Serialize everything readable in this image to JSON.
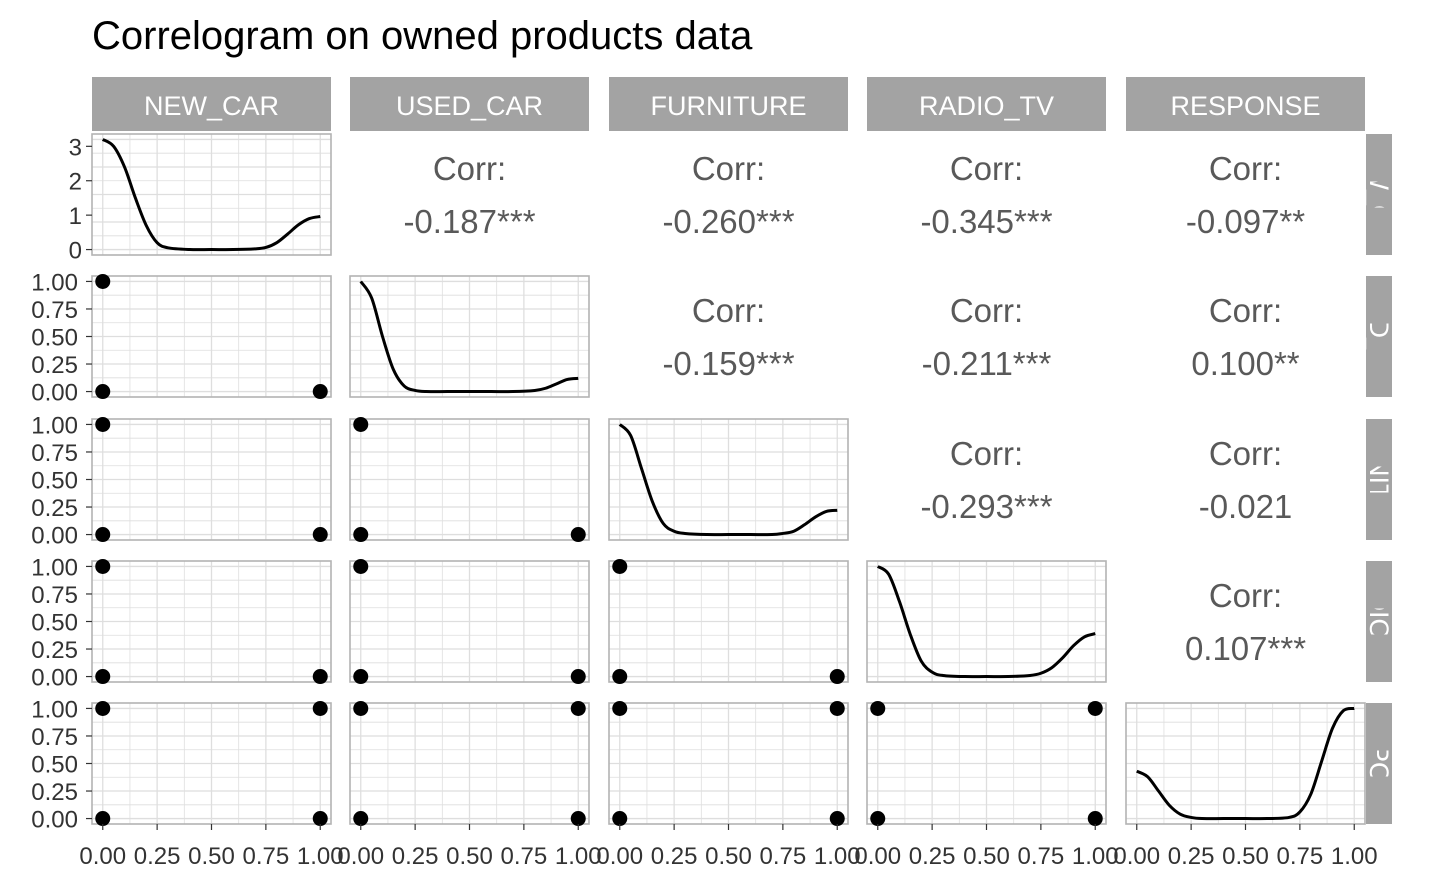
{
  "title": "Correlogram on owned products data",
  "variables": [
    "NEW_CAR",
    "USED_CAR",
    "FURNITURE",
    "RADIO_TV",
    "RESPONSE"
  ],
  "row_labels": [
    "NEW_CAR",
    "USED_CAR",
    "FURNITURE",
    "RADIO_TV",
    "RESPONSE"
  ],
  "corr_label": "Corr:",
  "colors": {
    "strip": "#a3a3a3",
    "grid": "#dedede",
    "border": "#b3b3b3",
    "line": "#000000",
    "text": "#595959"
  },
  "chart_data": {
    "type": "scatter",
    "title": "Correlogram on owned products data",
    "variables": [
      "NEW_CAR",
      "USED_CAR",
      "FURNITURE",
      "RADIO_TV",
      "RESPONSE"
    ],
    "x_ticks": [
      "0.00",
      "0.25",
      "0.50",
      "0.75",
      "1.00"
    ],
    "xlim": [
      0,
      1
    ],
    "y_ticks_density_row1": [
      "0",
      "1",
      "2",
      "3"
    ],
    "y_ticks_scatter": [
      "0.00",
      "0.25",
      "0.50",
      "0.75",
      "1.00"
    ],
    "grid": true,
    "correlations": [
      {
        "row": "NEW_CAR",
        "col": "USED_CAR",
        "value": "-0.187***"
      },
      {
        "row": "NEW_CAR",
        "col": "FURNITURE",
        "value": "-0.260***"
      },
      {
        "row": "NEW_CAR",
        "col": "RADIO_TV",
        "value": "-0.345***"
      },
      {
        "row": "NEW_CAR",
        "col": "RESPONSE",
        "value": "-0.097**"
      },
      {
        "row": "USED_CAR",
        "col": "FURNITURE",
        "value": "-0.159***"
      },
      {
        "row": "USED_CAR",
        "col": "RADIO_TV",
        "value": "-0.211***"
      },
      {
        "row": "USED_CAR",
        "col": "RESPONSE",
        "value": "0.100**"
      },
      {
        "row": "FURNITURE",
        "col": "RADIO_TV",
        "value": "-0.293***"
      },
      {
        "row": "FURNITURE",
        "col": "RESPONSE",
        "value": "-0.021"
      },
      {
        "row": "RADIO_TV",
        "col": "RESPONSE",
        "value": "0.107***"
      }
    ],
    "densities": [
      {
        "variable": "NEW_CAR",
        "x": [
          0,
          0.05,
          0.1,
          0.15,
          0.2,
          0.25,
          0.3,
          0.4,
          0.5,
          0.6,
          0.7,
          0.75,
          0.8,
          0.85,
          0.9,
          0.95,
          1.0
        ],
        "y": [
          3.2,
          3.0,
          2.4,
          1.5,
          0.7,
          0.2,
          0.05,
          0,
          0,
          0,
          0.02,
          0.06,
          0.2,
          0.45,
          0.72,
          0.9,
          0.96
        ]
      },
      {
        "variable": "USED_CAR",
        "x": [
          0,
          0.05,
          0.1,
          0.15,
          0.2,
          0.25,
          0.3,
          0.4,
          0.5,
          0.6,
          0.7,
          0.8,
          0.85,
          0.9,
          0.95,
          1.0
        ],
        "y": [
          1.0,
          0.85,
          0.5,
          0.2,
          0.05,
          0.01,
          0,
          0,
          0,
          0,
          0,
          0.01,
          0.03,
          0.07,
          0.11,
          0.12
        ]
      },
      {
        "variable": "FURNITURE",
        "x": [
          0,
          0.05,
          0.1,
          0.15,
          0.2,
          0.25,
          0.3,
          0.4,
          0.5,
          0.6,
          0.7,
          0.75,
          0.8,
          0.85,
          0.9,
          0.95,
          1.0
        ],
        "y": [
          1.0,
          0.9,
          0.6,
          0.3,
          0.1,
          0.03,
          0.01,
          0,
          0,
          0,
          0,
          0.01,
          0.03,
          0.09,
          0.16,
          0.21,
          0.22
        ]
      },
      {
        "variable": "RADIO_TV",
        "x": [
          0,
          0.05,
          0.1,
          0.15,
          0.2,
          0.25,
          0.3,
          0.4,
          0.5,
          0.6,
          0.7,
          0.75,
          0.8,
          0.85,
          0.9,
          0.95,
          1.0
        ],
        "y": [
          1.0,
          0.93,
          0.68,
          0.38,
          0.14,
          0.04,
          0.01,
          0,
          0,
          0,
          0.01,
          0.03,
          0.08,
          0.17,
          0.28,
          0.36,
          0.39
        ]
      },
      {
        "variable": "RESPONSE",
        "x": [
          0,
          0.05,
          0.1,
          0.15,
          0.2,
          0.25,
          0.3,
          0.4,
          0.5,
          0.6,
          0.7,
          0.75,
          0.8,
          0.85,
          0.9,
          0.95,
          1.0
        ],
        "y": [
          0.43,
          0.38,
          0.25,
          0.12,
          0.04,
          0.01,
          0,
          0,
          0,
          0,
          0.01,
          0.06,
          0.22,
          0.52,
          0.82,
          0.98,
          1.0
        ]
      }
    ],
    "scatter_points": [
      {
        "row": "USED_CAR",
        "col": "NEW_CAR",
        "points": [
          [
            0,
            1
          ],
          [
            0,
            0
          ],
          [
            1,
            0
          ]
        ]
      },
      {
        "row": "FURNITURE",
        "col": "NEW_CAR",
        "points": [
          [
            0,
            1
          ],
          [
            0,
            0
          ],
          [
            1,
            0
          ]
        ]
      },
      {
        "row": "FURNITURE",
        "col": "USED_CAR",
        "points": [
          [
            0,
            1
          ],
          [
            0,
            0
          ],
          [
            1,
            0
          ]
        ]
      },
      {
        "row": "RADIO_TV",
        "col": "NEW_CAR",
        "points": [
          [
            0,
            1
          ],
          [
            0,
            0
          ],
          [
            1,
            0
          ]
        ]
      },
      {
        "row": "RADIO_TV",
        "col": "USED_CAR",
        "points": [
          [
            0,
            1
          ],
          [
            0,
            0
          ],
          [
            1,
            0
          ]
        ]
      },
      {
        "row": "RADIO_TV",
        "col": "FURNITURE",
        "points": [
          [
            0,
            1
          ],
          [
            0,
            0
          ],
          [
            1,
            0
          ]
        ]
      },
      {
        "row": "RESPONSE",
        "col": "NEW_CAR",
        "points": [
          [
            0,
            1
          ],
          [
            0,
            0
          ],
          [
            1,
            1
          ],
          [
            1,
            0
          ]
        ]
      },
      {
        "row": "RESPONSE",
        "col": "USED_CAR",
        "points": [
          [
            0,
            1
          ],
          [
            0,
            0
          ],
          [
            1,
            1
          ],
          [
            1,
            0
          ]
        ]
      },
      {
        "row": "RESPONSE",
        "col": "FURNITURE",
        "points": [
          [
            0,
            1
          ],
          [
            0,
            0
          ],
          [
            1,
            1
          ],
          [
            1,
            0
          ]
        ]
      },
      {
        "row": "RESPONSE",
        "col": "RADIO_TV",
        "points": [
          [
            0,
            1
          ],
          [
            0,
            0
          ],
          [
            1,
            1
          ],
          [
            1,
            0
          ]
        ]
      }
    ]
  }
}
